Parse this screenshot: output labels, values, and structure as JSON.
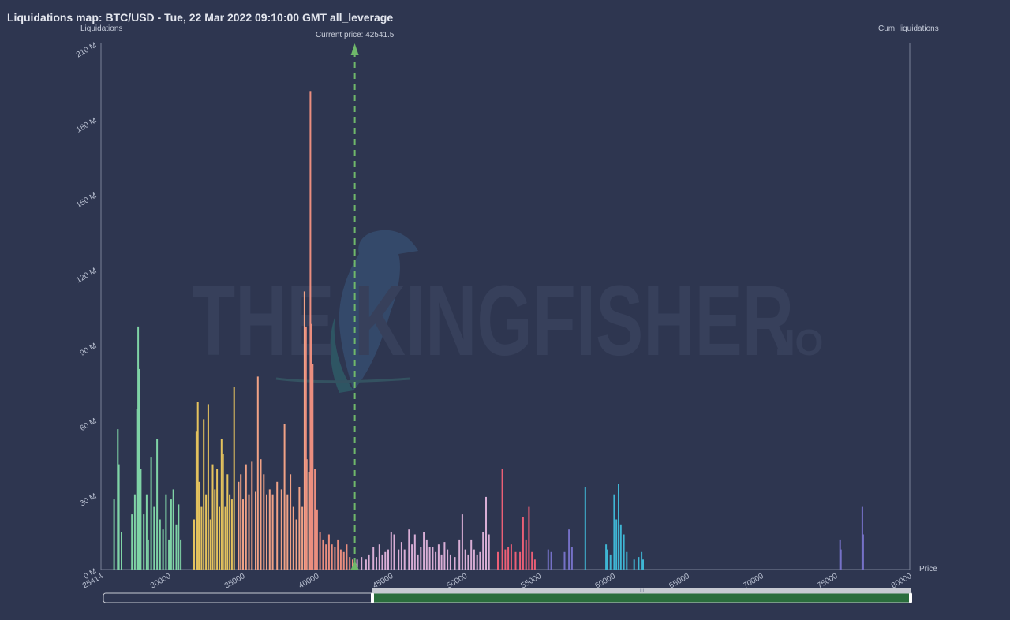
{
  "page_title": "Liquidations map: BTC/USD - Tue, 22 Mar 2022 09:10:00 GMT all_leverage",
  "watermark": {
    "main": "THE KINGFISHER",
    "suffix": ".IO"
  },
  "colors": {
    "background": "#2e3650",
    "axis": "#7a8299",
    "price_line": "#6fb86a",
    "scrollbar_fill": "#2a6d3c",
    "scrollbar_track": "#c7cad2"
  },
  "chart_data": {
    "type": "bar",
    "title": "Liquidations map: BTC/USD - Tue, 22 Mar 2022 09:10:00 GMT all_leverage",
    "ylabel": "Liquidations",
    "y2label": "Cum. liquidations",
    "xlabel": "Price",
    "xlim": [
      25414,
      80000
    ],
    "ylim": [
      0,
      210
    ],
    "x_ticks": [
      "25414",
      "30000",
      "35000",
      "40000",
      "45000",
      "50000",
      "55000",
      "60000",
      "65000",
      "70000",
      "75000",
      "80000"
    ],
    "y_ticks": [
      "0 M",
      "30 M",
      "60 M",
      "90 M",
      "120 M",
      "150 M",
      "180 M",
      "210 M"
    ],
    "current_price": 42541.5,
    "current_price_label": "Current price: 42541.5",
    "grid": false,
    "unit": "M",
    "series": [
      {
        "color": "#7fd3a6",
        "values": [
          [
            26300,
            28
          ],
          [
            26550,
            56
          ],
          [
            26620,
            42
          ],
          [
            26800,
            15
          ],
          [
            27500,
            22
          ],
          [
            27700,
            30
          ],
          [
            27850,
            64
          ],
          [
            27920,
            97
          ],
          [
            28000,
            80
          ],
          [
            28100,
            40
          ],
          [
            28300,
            22
          ],
          [
            28500,
            30
          ],
          [
            28600,
            12
          ],
          [
            28800,
            45
          ],
          [
            29000,
            25
          ],
          [
            29200,
            52
          ],
          [
            29400,
            20
          ],
          [
            29600,
            16
          ],
          [
            29800,
            30
          ],
          [
            30000,
            12
          ],
          [
            30150,
            28
          ],
          [
            30300,
            32
          ],
          [
            30500,
            18
          ],
          [
            30650,
            26
          ],
          [
            30800,
            12
          ]
        ]
      },
      {
        "color": "#e5c35e",
        "values": [
          [
            31700,
            20
          ],
          [
            31850,
            55
          ],
          [
            31950,
            67
          ],
          [
            32050,
            35
          ],
          [
            32200,
            25
          ],
          [
            32350,
            60
          ],
          [
            32500,
            30
          ],
          [
            32650,
            66
          ],
          [
            32800,
            20
          ],
          [
            32950,
            42
          ],
          [
            33100,
            32
          ],
          [
            33250,
            40
          ],
          [
            33400,
            25
          ],
          [
            33550,
            52
          ],
          [
            33650,
            46
          ],
          [
            33800,
            25
          ],
          [
            33950,
            38
          ],
          [
            34100,
            30
          ],
          [
            34250,
            28
          ],
          [
            34400,
            73
          ]
        ]
      },
      {
        "color": "#f0a286",
        "values": [
          [
            34700,
            35
          ],
          [
            34850,
            38
          ],
          [
            35000,
            28
          ],
          [
            35200,
            42
          ],
          [
            35400,
            30
          ],
          [
            35600,
            43
          ],
          [
            35850,
            31
          ],
          [
            36000,
            77
          ],
          [
            36200,
            44
          ],
          [
            36400,
            38
          ],
          [
            36600,
            30
          ],
          [
            36800,
            32
          ],
          [
            37000,
            30
          ],
          [
            37300,
            35
          ],
          [
            37600,
            32
          ],
          [
            37800,
            58
          ],
          [
            38000,
            30
          ],
          [
            38200,
            38
          ],
          [
            38400,
            25
          ],
          [
            38600,
            20
          ],
          [
            38800,
            33
          ],
          [
            39000,
            25
          ],
          [
            39150,
            111
          ],
          [
            39300,
            44
          ],
          [
            39450,
            39
          ]
        ]
      },
      {
        "color": "#eb8e7f",
        "values": [
          [
            39250,
            97
          ],
          [
            39550,
            191
          ],
          [
            39620,
            98
          ],
          [
            39700,
            82
          ],
          [
            39850,
            40
          ],
          [
            40000,
            24
          ],
          [
            40200,
            15
          ],
          [
            40400,
            12
          ],
          [
            40600,
            10
          ],
          [
            40800,
            14
          ],
          [
            41000,
            10
          ],
          [
            41200,
            9
          ],
          [
            41400,
            12
          ],
          [
            41600,
            8
          ],
          [
            41800,
            7
          ],
          [
            42000,
            10
          ],
          [
            42200,
            5
          ],
          [
            42400,
            4
          ]
        ]
      },
      {
        "color": "#d9aed6",
        "values": [
          [
            42700,
            4
          ],
          [
            43000,
            5
          ],
          [
            43300,
            4
          ],
          [
            43500,
            6
          ],
          [
            43800,
            9
          ],
          [
            44000,
            5
          ],
          [
            44200,
            10
          ],
          [
            44400,
            6
          ],
          [
            44600,
            7
          ],
          [
            44800,
            8
          ],
          [
            45000,
            15
          ],
          [
            45200,
            14
          ],
          [
            45500,
            8
          ],
          [
            45700,
            11
          ],
          [
            45900,
            8
          ],
          [
            46200,
            16
          ],
          [
            46400,
            10
          ],
          [
            46600,
            14
          ],
          [
            46800,
            6
          ],
          [
            47000,
            9
          ],
          [
            47200,
            15
          ],
          [
            47400,
            12
          ],
          [
            47600,
            9
          ],
          [
            47800,
            9
          ],
          [
            48000,
            7
          ],
          [
            48200,
            10
          ],
          [
            48400,
            6
          ],
          [
            48600,
            11
          ],
          [
            48800,
            8
          ],
          [
            49000,
            6
          ],
          [
            49300,
            5
          ],
          [
            49600,
            12
          ],
          [
            49800,
            22
          ],
          [
            50000,
            8
          ],
          [
            50200,
            6
          ],
          [
            50400,
            12
          ],
          [
            50600,
            8
          ],
          [
            50800,
            6
          ],
          [
            51000,
            7
          ],
          [
            51200,
            15
          ],
          [
            51400,
            29
          ],
          [
            51600,
            14
          ]
        ]
      },
      {
        "color": "#ec5f76",
        "values": [
          [
            52200,
            7
          ],
          [
            52500,
            40
          ],
          [
            52700,
            8
          ],
          [
            52900,
            9
          ],
          [
            53100,
            10
          ],
          [
            53400,
            7
          ],
          [
            53700,
            7
          ],
          [
            53900,
            21
          ],
          [
            54100,
            12
          ],
          [
            54300,
            25
          ],
          [
            54500,
            7
          ],
          [
            54700,
            4
          ]
        ]
      },
      {
        "color": "#7571c7",
        "values": [
          [
            55600,
            8
          ],
          [
            55800,
            7
          ],
          [
            56700,
            7
          ],
          [
            57000,
            16
          ],
          [
            57200,
            9
          ],
          [
            75300,
            12
          ],
          [
            75350,
            8
          ],
          [
            76800,
            25
          ],
          [
            76850,
            14
          ]
        ]
      },
      {
        "color": "#3fb6d4",
        "values": [
          [
            58100,
            33
          ],
          [
            59500,
            10
          ],
          [
            59600,
            8
          ],
          [
            59800,
            6
          ],
          [
            60050,
            30
          ],
          [
            60200,
            20
          ],
          [
            60350,
            34
          ],
          [
            60500,
            18
          ],
          [
            60700,
            14
          ],
          [
            60900,
            7
          ],
          [
            61400,
            4
          ],
          [
            61700,
            5
          ],
          [
            61900,
            7
          ],
          [
            62000,
            4
          ]
        ]
      }
    ]
  },
  "zoom_bar": {
    "range_start_fraction": 0.333,
    "range_end_fraction": 1.0,
    "handle_glyph": "III"
  }
}
